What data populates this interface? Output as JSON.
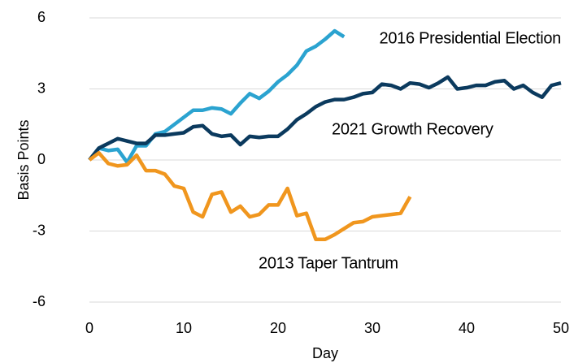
{
  "chart_data": {
    "type": "line",
    "x": [
      0,
      1,
      2,
      3,
      4,
      5,
      6,
      7,
      8,
      9,
      10,
      11,
      12,
      13,
      14,
      15,
      16,
      17,
      18,
      19,
      20,
      21,
      22,
      23,
      24,
      25,
      26,
      27,
      28,
      29,
      30,
      31,
      32,
      33,
      34,
      35,
      36,
      37,
      38,
      39,
      40,
      41,
      42,
      43,
      44,
      45,
      46,
      47,
      48,
      49,
      50
    ],
    "series": [
      {
        "name": "2016 Presidential Election",
        "color": "#2ba3d0",
        "values": [
          0,
          0.5,
          0.4,
          0.45,
          -0.1,
          0.6,
          0.6,
          1.1,
          1.2,
          1.5,
          1.8,
          2.1,
          2.1,
          2.2,
          2.15,
          1.95,
          2.4,
          2.8,
          2.6,
          2.9,
          3.3,
          3.6,
          4.0,
          4.6,
          4.8,
          5.1,
          5.45,
          5.2,
          null,
          null,
          null,
          null,
          null,
          null,
          null,
          null,
          null,
          null,
          null,
          null,
          null,
          null,
          null,
          null,
          null,
          null,
          null,
          null,
          null,
          null,
          null
        ]
      },
      {
        "name": "2021 Growth Recovery",
        "color": "#0b3a5e",
        "values": [
          0,
          0.5,
          0.7,
          0.9,
          0.8,
          0.7,
          0.7,
          1.05,
          1.05,
          1.1,
          1.15,
          1.4,
          1.45,
          1.1,
          1.0,
          1.05,
          0.65,
          1.0,
          0.95,
          1.0,
          1.0,
          1.3,
          1.7,
          1.95,
          2.25,
          2.45,
          2.55,
          2.55,
          2.65,
          2.8,
          2.85,
          3.2,
          3.15,
          3.0,
          3.25,
          3.2,
          3.05,
          3.25,
          3.5,
          3.0,
          3.05,
          3.15,
          3.15,
          3.3,
          3.35,
          3.0,
          3.15,
          2.85,
          2.65,
          3.15,
          3.25
        ]
      },
      {
        "name": "2013 Taper Tantrum",
        "color": "#f0961e",
        "values": [
          0,
          0.3,
          -0.15,
          -0.25,
          -0.2,
          0.2,
          -0.45,
          -0.45,
          -0.6,
          -1.1,
          -1.2,
          -2.2,
          -2.4,
          -1.45,
          -1.35,
          -2.2,
          -1.95,
          -2.4,
          -2.3,
          -1.9,
          -1.9,
          -1.2,
          -2.35,
          -2.25,
          -3.35,
          -3.35,
          -3.15,
          -2.9,
          -2.65,
          -2.6,
          -2.4,
          -2.35,
          -2.3,
          -2.25,
          -1.55,
          null,
          null,
          null,
          null,
          null,
          null,
          null,
          null,
          null,
          null,
          null,
          null,
          null,
          null,
          null,
          null
        ]
      }
    ],
    "xlabel": "Day",
    "ylabel": "Basis Points",
    "xlim": [
      0,
      50
    ],
    "xticks": [
      0,
      10,
      20,
      30,
      40,
      50
    ],
    "ylim": [
      -6,
      6
    ],
    "yticks": [
      -6,
      -3,
      0,
      3,
      6
    ],
    "grid": true
  }
}
